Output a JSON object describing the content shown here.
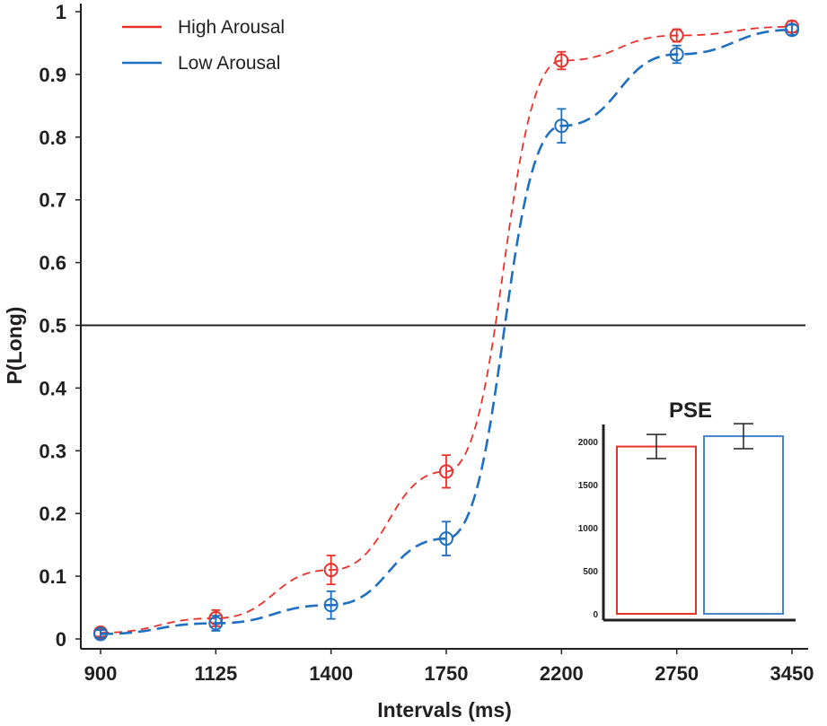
{
  "chart_data": [
    {
      "type": "line",
      "categories": [
        "900",
        "1125",
        "1400",
        "1750",
        "2200",
        "2750",
        "3450"
      ],
      "xlabel": "Intervals (ms)",
      "ylabel": "P(Long)",
      "ylim": [
        0,
        1
      ],
      "yticks": [
        "0",
        "0.1",
        "0.2",
        "0.3",
        "0.4",
        "0.5",
        "0.6",
        "0.7",
        "0.8",
        "0.9",
        "1"
      ],
      "reference_line": 0.5,
      "legend_position": "top-left",
      "series": [
        {
          "name": "High Arousal",
          "color": "#e8312a",
          "values": [
            0.01,
            0.033,
            0.11,
            0.267,
            0.922,
            0.962,
            0.976
          ],
          "errors": [
            0.006,
            0.013,
            0.023,
            0.026,
            0.014,
            0.01,
            0.009
          ]
        },
        {
          "name": "Low Arousal",
          "color": "#1f6fc1",
          "values": [
            0.008,
            0.025,
            0.054,
            0.16,
            0.818,
            0.932,
            0.971
          ],
          "errors": [
            0.006,
            0.012,
            0.022,
            0.027,
            0.027,
            0.014,
            0.008
          ]
        }
      ]
    },
    {
      "type": "bar",
      "title": "PSE",
      "categories": [
        "High Arousal",
        "Low Arousal"
      ],
      "values": [
        1940,
        2060
      ],
      "errors": [
        140,
        145
      ],
      "colors": [
        "#e8312a",
        "#4a86c5"
      ],
      "ylim": [
        0,
        2300
      ],
      "yticks": [
        "0",
        "500",
        "1000",
        "1500",
        "2000"
      ]
    }
  ]
}
